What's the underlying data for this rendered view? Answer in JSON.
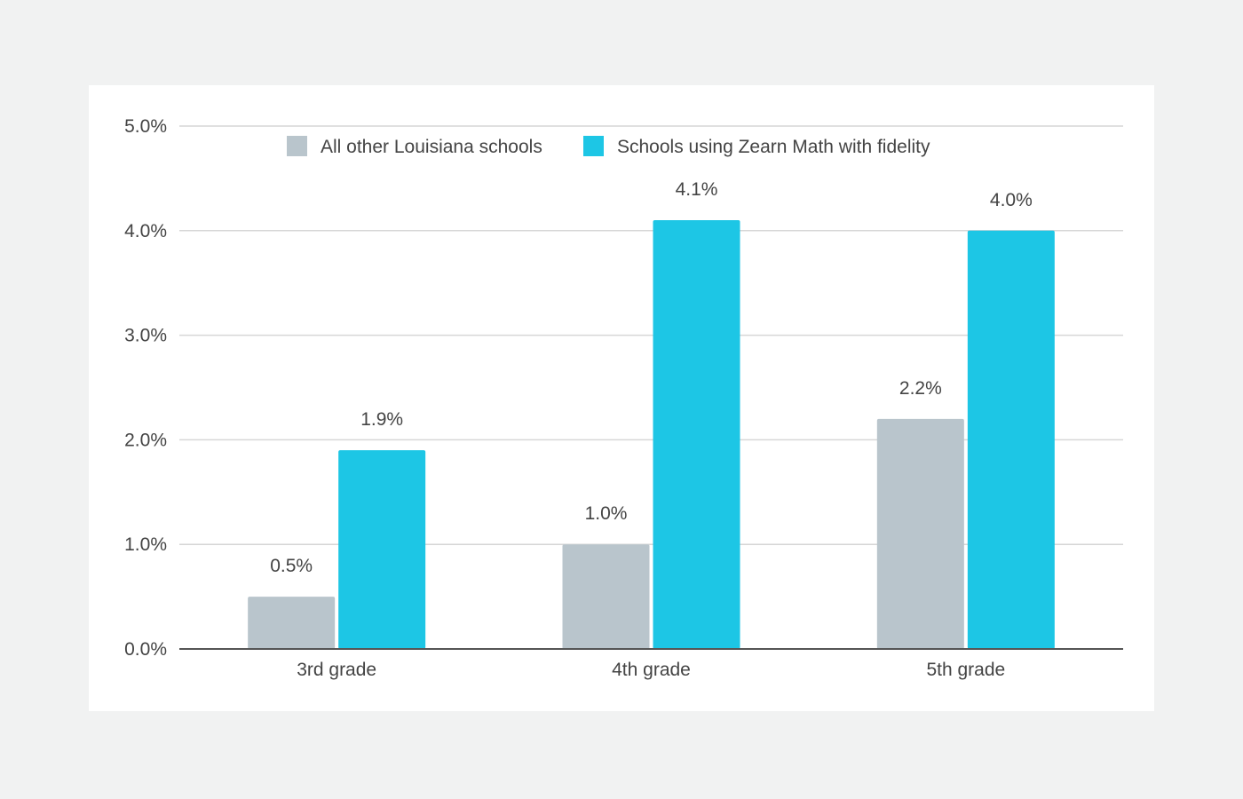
{
  "chart_data": {
    "type": "bar",
    "categories": [
      "3rd grade",
      "4th grade",
      "5th grade"
    ],
    "series": [
      {
        "name": "All other Louisiana schools",
        "color": "#b9c5cc",
        "values": [
          0.5,
          1.0,
          2.2
        ],
        "labels": [
          "0.5%",
          "1.0%",
          "2.2%"
        ]
      },
      {
        "name": "Schools using Zearn Math with fidelity",
        "color": "#1dc6e5",
        "values": [
          1.9,
          4.1,
          4.0
        ],
        "labels": [
          "1.9%",
          "4.1%",
          "4.0%"
        ]
      }
    ],
    "ylim": [
      0,
      5
    ],
    "yticks": [
      0,
      1,
      2,
      3,
      4,
      5
    ],
    "ytick_labels": [
      "0.0%",
      "1.0%",
      "2.0%",
      "3.0%",
      "4.0%",
      "5.0%"
    ],
    "grid": true,
    "legend": "top-center"
  }
}
